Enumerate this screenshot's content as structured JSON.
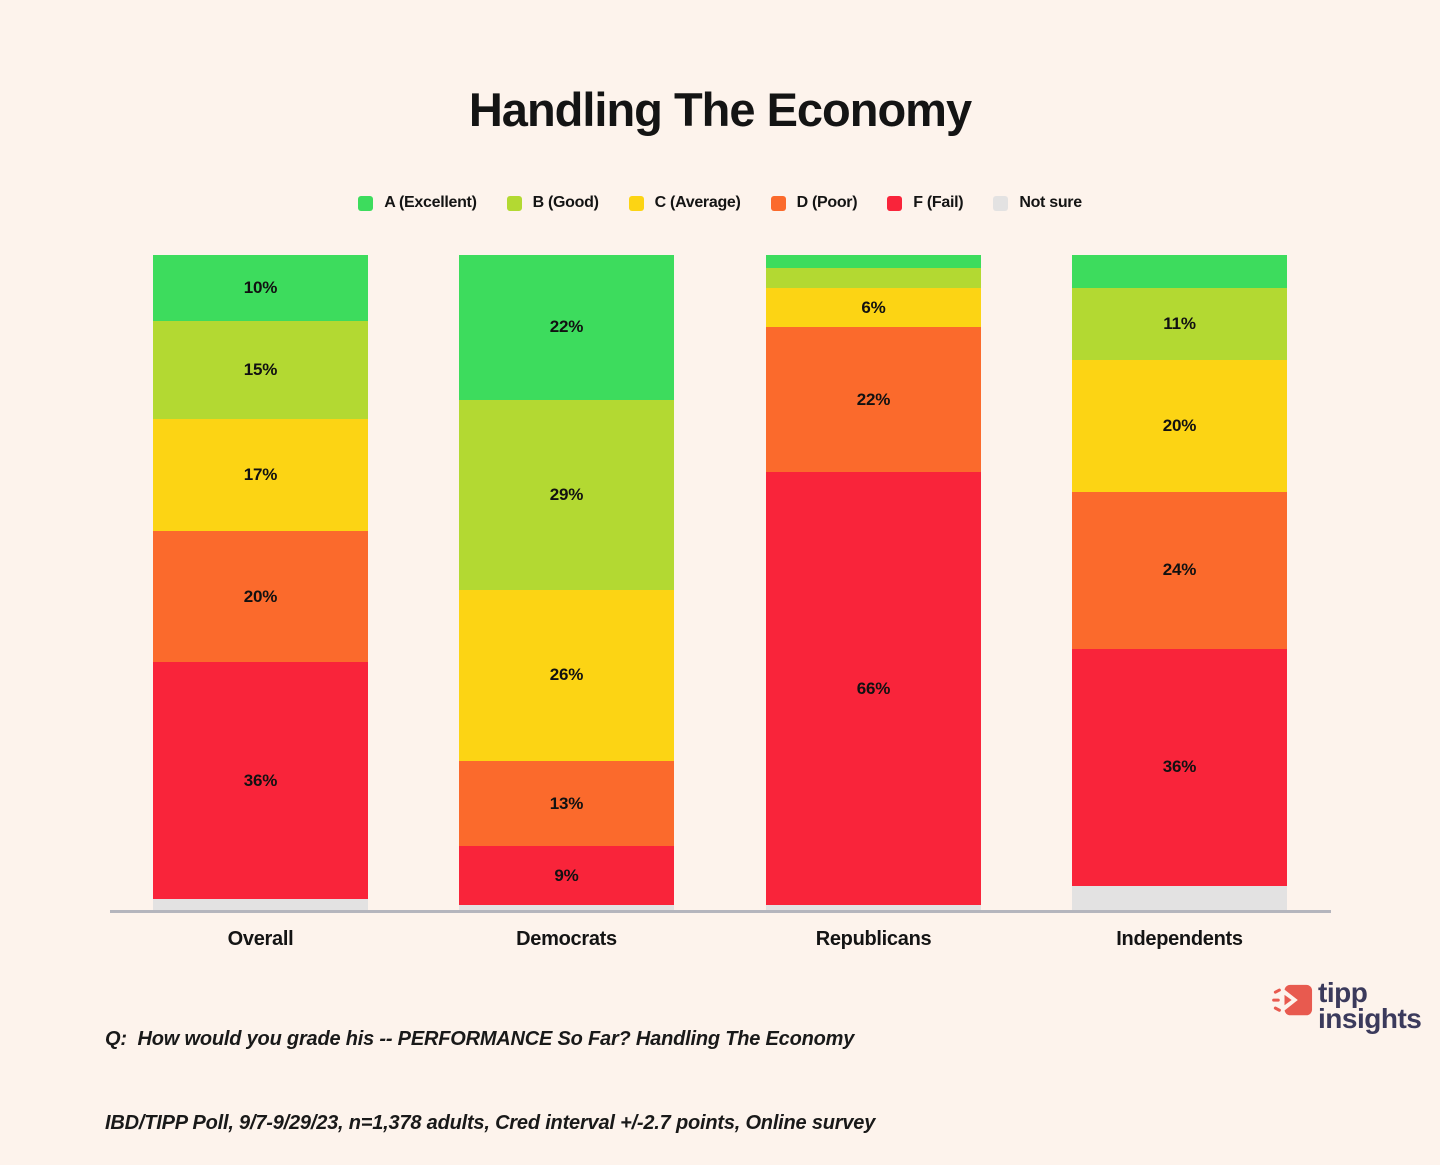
{
  "title": "Handling The Economy",
  "colors": {
    "background": "#FDF3EC",
    "grade_a": "#3DDC5D",
    "grade_b": "#B3D932",
    "grade_c": "#FCD414",
    "grade_d": "#FB6A2C",
    "grade_f": "#F9243A",
    "not_sure": "#E3E2E2",
    "axis_line": "#B5B5BD",
    "logo_red": "#E85A4F",
    "logo_navy": "#3B3A5C"
  },
  "legend": [
    {
      "label": "A (Excellent)",
      "color": "#3DDC5D"
    },
    {
      "label": "B (Good)",
      "color": "#B3D932"
    },
    {
      "label": "C (Average)",
      "color": "#FCD414"
    },
    {
      "label": "D (Poor)",
      "color": "#FB6A2C"
    },
    {
      "label": "F (Fail)",
      "color": "#F9243A"
    },
    {
      "label": "Not sure",
      "color": "#E3E2E2"
    }
  ],
  "chart_data": {
    "type": "bar",
    "stacked": true,
    "orientation": "vertical",
    "title": "Handling The Economy",
    "categories": [
      "Overall",
      "Democrats",
      "Republicans",
      "Independents"
    ],
    "series": [
      {
        "name": "A (Excellent)",
        "values": [
          10,
          22,
          2,
          5
        ]
      },
      {
        "name": "B (Good)",
        "values": [
          15,
          29,
          3,
          11
        ]
      },
      {
        "name": "C (Average)",
        "values": [
          17,
          26,
          6,
          20
        ]
      },
      {
        "name": "D (Poor)",
        "values": [
          20,
          13,
          22,
          24
        ]
      },
      {
        "name": "F (Fail)",
        "values": [
          36,
          9,
          66,
          36
        ]
      },
      {
        "name": "Not sure",
        "values": [
          2,
          1,
          1,
          4
        ]
      }
    ],
    "value_label_format": "{v}%",
    "value_label_min_shown": 6,
    "ylim": [
      0,
      100
    ],
    "grid": false,
    "legend_position": "top"
  },
  "footnote": {
    "line1": "Q:  How would you grade his -- PERFORMANCE So Far? Handling The Economy",
    "line2": "IBD/TIPP Poll, 9/7-9/29/23, n=1,378 adults, Cred interval +/-2.7 points, Online survey"
  },
  "logo": {
    "line1": "tipp",
    "line2": "insights"
  }
}
